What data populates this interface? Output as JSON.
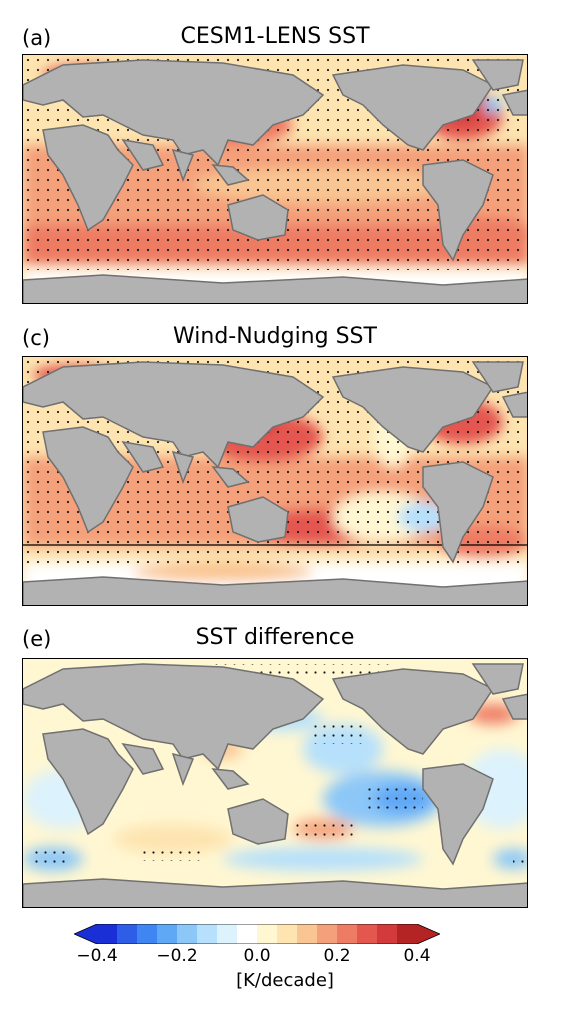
{
  "panels": [
    {
      "letter": "(a)",
      "title": "CESM1-LENS SST"
    },
    {
      "letter": "(c)",
      "title": "Wind-Nudging SST"
    },
    {
      "letter": "(e)",
      "title": "SST difference"
    }
  ],
  "colorbar": {
    "unit": "[K/decade]",
    "ticks": [
      "−0.4",
      "−0.2",
      "0.0",
      "0.2",
      "0.4"
    ],
    "range": [
      -0.4,
      0.4
    ],
    "step": 0.05,
    "colors": [
      "#1a2fd6",
      "#2e5ee8",
      "#3f86f2",
      "#5fa8f6",
      "#8cc7f8",
      "#b6e0fb",
      "#dcf2fc",
      "#ffffff",
      "#fff7d2",
      "#fde4b0",
      "#f9c592",
      "#f4a07a",
      "#ee7b63",
      "#e4574f",
      "#d33a3c",
      "#b42424"
    ]
  },
  "colors": {
    "land": "#b2b2b2",
    "coast": "#707070",
    "stipple": "#000000"
  }
}
